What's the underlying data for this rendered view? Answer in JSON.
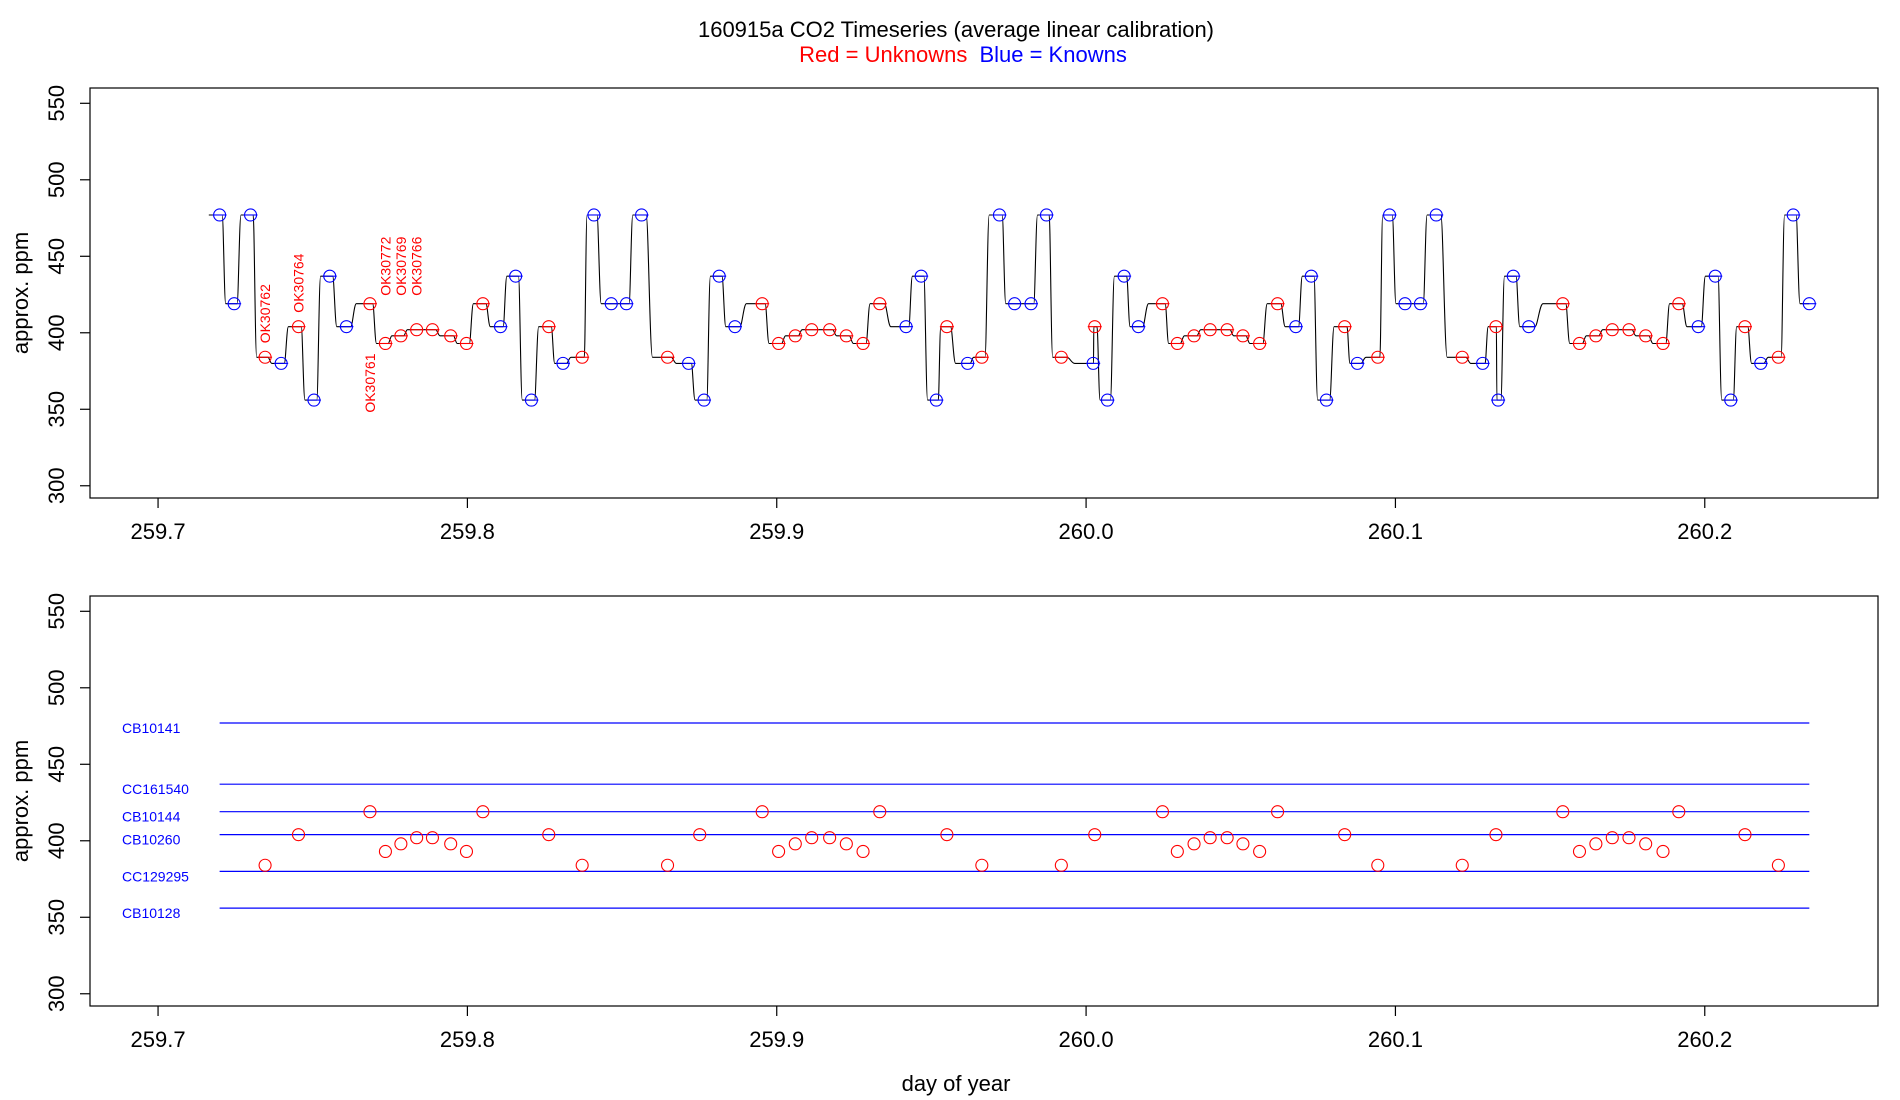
{
  "title": "160915a   CO2 Timeseries (average linear calibration)",
  "legend": {
    "unknowns": "Red = Unknowns",
    "knowns": "Blue = Knowns"
  },
  "colors": {
    "unknown": "#ff0000",
    "known": "#0000ff",
    "trace": "#000000",
    "axis": "#000000"
  },
  "chart_data": [
    {
      "type": "line",
      "panel": "top",
      "title": "",
      "xlabel": "",
      "ylabel": "approx. ppm",
      "xlim": [
        259.678,
        260.256
      ],
      "ylim": [
        292,
        560
      ],
      "x_ticks": [
        259.7,
        259.8,
        259.9,
        260.0,
        260.1,
        260.2
      ],
      "x_tick_labels": [
        "259.7",
        "259.8",
        "259.9",
        "260.0",
        "260.1",
        "260.2"
      ],
      "y_ticks": [
        300,
        350,
        400,
        450,
        500,
        550
      ],
      "y_tick_labels": [
        "300",
        "350",
        "400",
        "450",
        "500",
        "550"
      ],
      "grid": false,
      "knowns": {
        "name": "Blue = Knowns",
        "x": [
          259.7199,
          259.7246,
          259.7299,
          259.7398,
          259.7504,
          259.7555,
          259.7609,
          259.8107,
          259.8156,
          259.8207,
          259.8309,
          259.8409,
          259.8465,
          259.8514,
          259.8563,
          259.8715,
          259.8765,
          259.8814,
          259.8865,
          259.9418,
          259.9467,
          259.9516,
          259.9617,
          259.972,
          259.9769,
          259.9822,
          259.9872,
          260.0023,
          260.0069,
          260.0123,
          260.0169,
          260.0678,
          260.0728,
          260.0777,
          260.0877,
          260.0981,
          260.1031,
          260.1081,
          260.1132,
          260.1282,
          260.1332,
          260.1381,
          260.1431,
          260.1979,
          260.2034,
          260.2084,
          260.2181,
          260.2286,
          260.2338
        ],
        "y": [
          477,
          419,
          477,
          380,
          356,
          437,
          404,
          404,
          437,
          356,
          380,
          477,
          419,
          419,
          477,
          380,
          356,
          437,
          404,
          404,
          437,
          356,
          380,
          477,
          419,
          419,
          477,
          380,
          356,
          437,
          404,
          404,
          437,
          356,
          380,
          477,
          419,
          419,
          477,
          380,
          356,
          437,
          404,
          404,
          437,
          356,
          380,
          477,
          419
        ]
      },
      "unknowns": {
        "name": "Red = Unknowns",
        "x": [
          259.7346,
          259.7454,
          259.7685,
          259.7735,
          259.7785,
          259.7836,
          259.7887,
          259.7946,
          259.7997,
          259.805,
          259.8263,
          259.8371,
          259.8647,
          259.8953,
          259.9006,
          259.906,
          259.9113,
          259.9171,
          259.9225,
          259.9279,
          259.9333,
          259.955,
          259.9663,
          259.992,
          260.0028,
          260.0247,
          260.0295,
          260.0349,
          260.0401,
          260.0456,
          260.0507,
          260.0561,
          260.0619,
          260.0836,
          260.0943,
          260.1216,
          260.1325,
          260.1541,
          260.1595,
          260.1648,
          260.1701,
          260.1755,
          260.1809,
          260.1865,
          260.1916,
          260.213,
          260.2238
        ],
        "y": [
          384,
          404,
          419,
          393,
          398,
          402,
          402,
          398,
          393,
          419,
          404,
          384,
          384,
          419,
          393,
          398,
          402,
          402,
          398,
          393,
          419,
          404,
          384,
          384,
          404,
          419,
          393,
          398,
          402,
          402,
          398,
          393,
          419,
          404,
          384,
          384,
          404,
          419,
          393,
          398,
          402,
          402,
          398,
          393,
          419,
          404,
          384
        ]
      },
      "annotations": [
        {
          "text": "OK30762",
          "x": 259.7346,
          "y": 384
        },
        {
          "text": "OK30764",
          "x": 259.7454,
          "y": 404
        },
        {
          "text": "OK30761",
          "x": 259.7685,
          "y": 393
        },
        {
          "text": "OK30772",
          "x": 259.7735,
          "y": 415
        },
        {
          "text": "OK30769",
          "x": 259.7785,
          "y": 415
        },
        {
          "text": "OK30766",
          "x": 259.7836,
          "y": 415
        }
      ]
    },
    {
      "type": "scatter",
      "panel": "bottom",
      "title": "",
      "xlabel": "day of year",
      "ylabel": "approx. ppm",
      "xlim": [
        259.678,
        260.256
      ],
      "ylim": [
        292,
        560
      ],
      "x_ticks": [
        259.7,
        259.8,
        259.9,
        260.0,
        260.1,
        260.2
      ],
      "x_tick_labels": [
        "259.7",
        "259.8",
        "259.9",
        "260.0",
        "260.1",
        "260.2"
      ],
      "y_ticks": [
        300,
        350,
        400,
        450,
        500,
        550
      ],
      "y_tick_labels": [
        "300",
        "350",
        "400",
        "450",
        "500",
        "550"
      ],
      "grid": false,
      "standards": [
        {
          "name": "CB10141",
          "value": 477
        },
        {
          "name": "CC161540",
          "value": 437
        },
        {
          "name": "CB10144",
          "value": 419
        },
        {
          "name": "CB10260",
          "value": 404
        },
        {
          "name": "CC129295",
          "value": 380
        },
        {
          "name": "CB10128",
          "value": 356
        }
      ],
      "standard_xrange": [
        259.7199,
        260.2338
      ],
      "unknowns": {
        "name": "Red = Unknowns",
        "x": [
          259.7346,
          259.7454,
          259.7685,
          259.7735,
          259.7785,
          259.7836,
          259.7887,
          259.7946,
          259.7997,
          259.805,
          259.8263,
          259.8371,
          259.8647,
          259.8751,
          259.8953,
          259.9006,
          259.906,
          259.9113,
          259.9171,
          259.9225,
          259.9279,
          259.9333,
          259.955,
          259.9663,
          259.992,
          260.0028,
          260.0247,
          260.0295,
          260.0349,
          260.0401,
          260.0456,
          260.0507,
          260.0561,
          260.0619,
          260.0836,
          260.0943,
          260.1216,
          260.1325,
          260.1541,
          260.1595,
          260.1648,
          260.1701,
          260.1755,
          260.1809,
          260.1865,
          260.1916,
          260.213,
          260.2238
        ],
        "y": [
          384,
          404,
          419,
          393,
          398,
          402,
          402,
          398,
          393,
          419,
          404,
          384,
          384,
          404,
          419,
          393,
          398,
          402,
          402,
          398,
          393,
          419,
          404,
          384,
          384,
          404,
          419,
          393,
          398,
          402,
          402,
          398,
          393,
          419,
          404,
          384,
          384,
          404,
          419,
          393,
          398,
          402,
          402,
          398,
          393,
          419,
          404,
          384
        ]
      }
    }
  ]
}
